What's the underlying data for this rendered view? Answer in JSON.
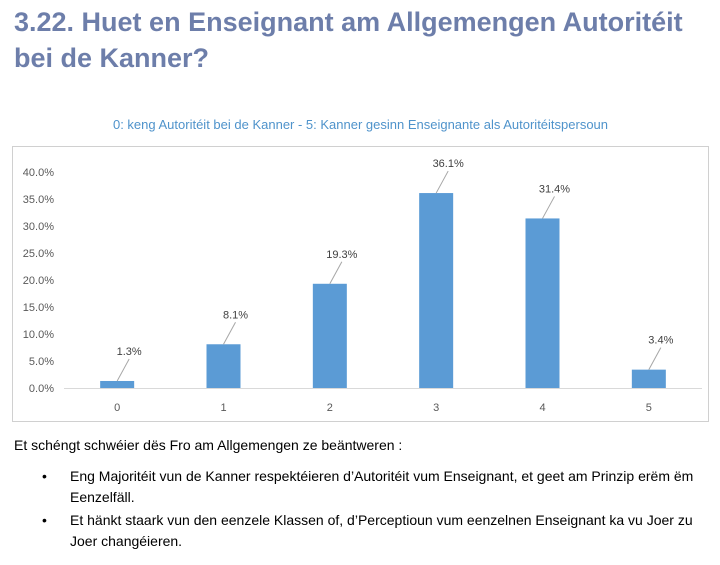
{
  "heading": "3.22. Huet en Enseignant am Allgemengen Autoritéit bei de Kanner?",
  "chart_data": {
    "type": "bar",
    "title": "0: keng Autoritéit bei de Kanner - 5: Kanner gesinn Enseignante als Autoritéitspersoun",
    "categories": [
      "0",
      "1",
      "2",
      "3",
      "4",
      "5"
    ],
    "values": [
      1.3,
      8.1,
      19.3,
      36.1,
      31.4,
      3.4
    ],
    "data_labels": [
      "1.3%",
      "8.1%",
      "19.3%",
      "36.1%",
      "31.4%",
      "3.4%"
    ],
    "yticks": [
      "0.0%",
      "5.0%",
      "10.0%",
      "15.0%",
      "20.0%",
      "25.0%",
      "30.0%",
      "35.0%",
      "40.0%"
    ],
    "ylim": [
      0,
      40
    ],
    "xlabel": "",
    "ylabel": "",
    "grid": false,
    "bar_color": "#5b9bd5"
  },
  "text": {
    "intro": "Et schéngt schwéier dës Fro am Allgemengen ze beäntweren :",
    "bullet_symbol": "•",
    "bullets": [
      "Eng Majoritéit vun de Kanner respektéieren d’Autoritéit vum Enseignant, et geet am Prinzip erëm ëm Eenzelfäll.",
      "Et hänkt staark vun den eenzele Klassen of, d’Perceptioun vum eenzelnen Enseignant ka vu Joer zu Joer changéieren."
    ]
  }
}
